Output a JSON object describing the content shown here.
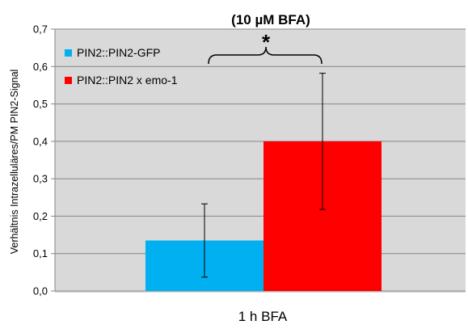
{
  "chart_data": {
    "type": "bar",
    "title": "(10 µM BFA)",
    "xlabel": "",
    "ylabel": "Verhältnis Intrazelluläres/PM PIN2-Signal",
    "categories": [
      "1 h BFA"
    ],
    "ylim": [
      0,
      0.7
    ],
    "yticks": [
      "0,0",
      "0,1",
      "0,2",
      "0,3",
      "0,4",
      "0,5",
      "0,6",
      "0,7"
    ],
    "grid": true,
    "legend_position": "top-left",
    "series": [
      {
        "name": "PIN2::PIN2-GFP",
        "values": [
          0.135
        ],
        "error": [
          0.098
        ],
        "color": "#00B0F0"
      },
      {
        "name": "PIN2::PIN2 x emo-1",
        "values": [
          0.4
        ],
        "error": [
          0.182
        ],
        "color": "#FF0000"
      }
    ],
    "annotation": {
      "text": "*"
    }
  }
}
